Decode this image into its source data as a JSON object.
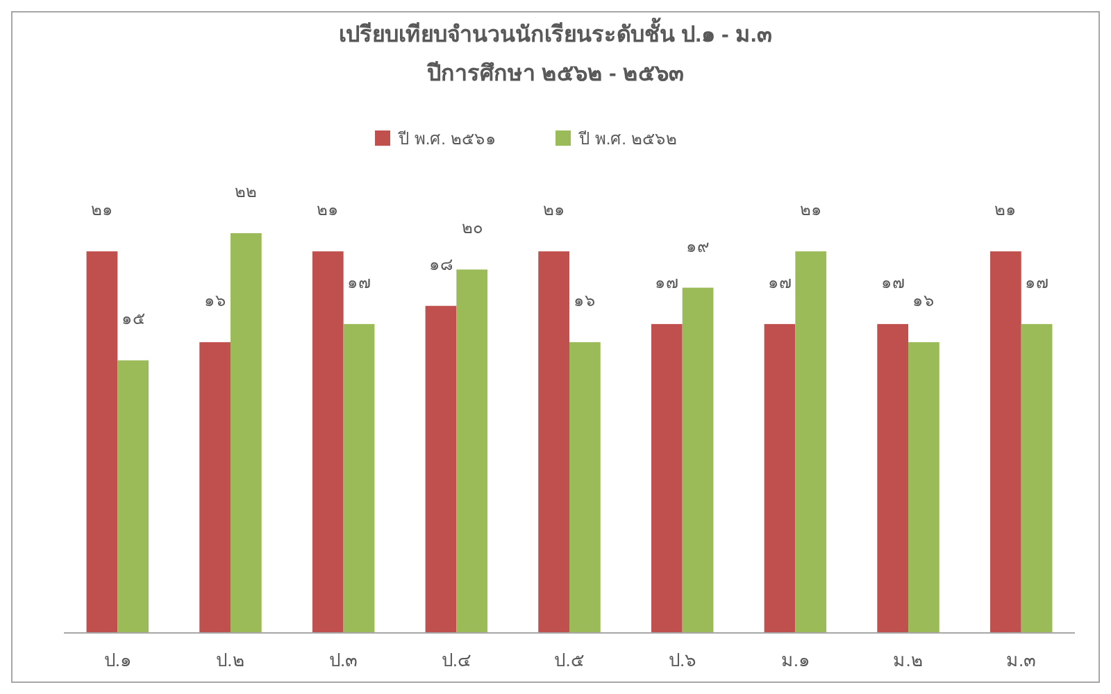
{
  "chart_data": {
    "type": "bar",
    "title": "เปรียบเทียบจำนวนนักเรียนระดับชั้น ป.๑ - ม.๓",
    "subtitle": "ปีการศึกษา ๒๕๖๒ - ๒๕๖๓",
    "categories": [
      "ป.๑",
      "ป.๒",
      "ป.๓",
      "ป.๔",
      "ป.๕",
      "ป.๖",
      "ม.๑",
      "ม.๒",
      "ม.๓"
    ],
    "series": [
      {
        "name": "ปี พ.ศ. ๒๕๖๑",
        "color": "#c0504d",
        "values": [
          21,
          16,
          21,
          18,
          21,
          17,
          17,
          17,
          21
        ],
        "value_labels": [
          "๒๑",
          "๑๖",
          "๒๑",
          "๑๘",
          "๒๑",
          "๑๗",
          "๑๗",
          "๑๗",
          "๒๑"
        ]
      },
      {
        "name": "ปี พ.ศ. ๒๕๖๒",
        "color": "#9bbb59",
        "values": [
          15,
          22,
          17,
          20,
          16,
          19,
          21,
          16,
          17
        ],
        "value_labels": [
          "๑๕",
          "๒๒",
          "๑๗",
          "๒๐",
          "๑๖",
          "๑๙",
          "๒๑",
          "๑๖",
          "๑๗"
        ]
      }
    ],
    "legend": "top",
    "grid": false
  }
}
